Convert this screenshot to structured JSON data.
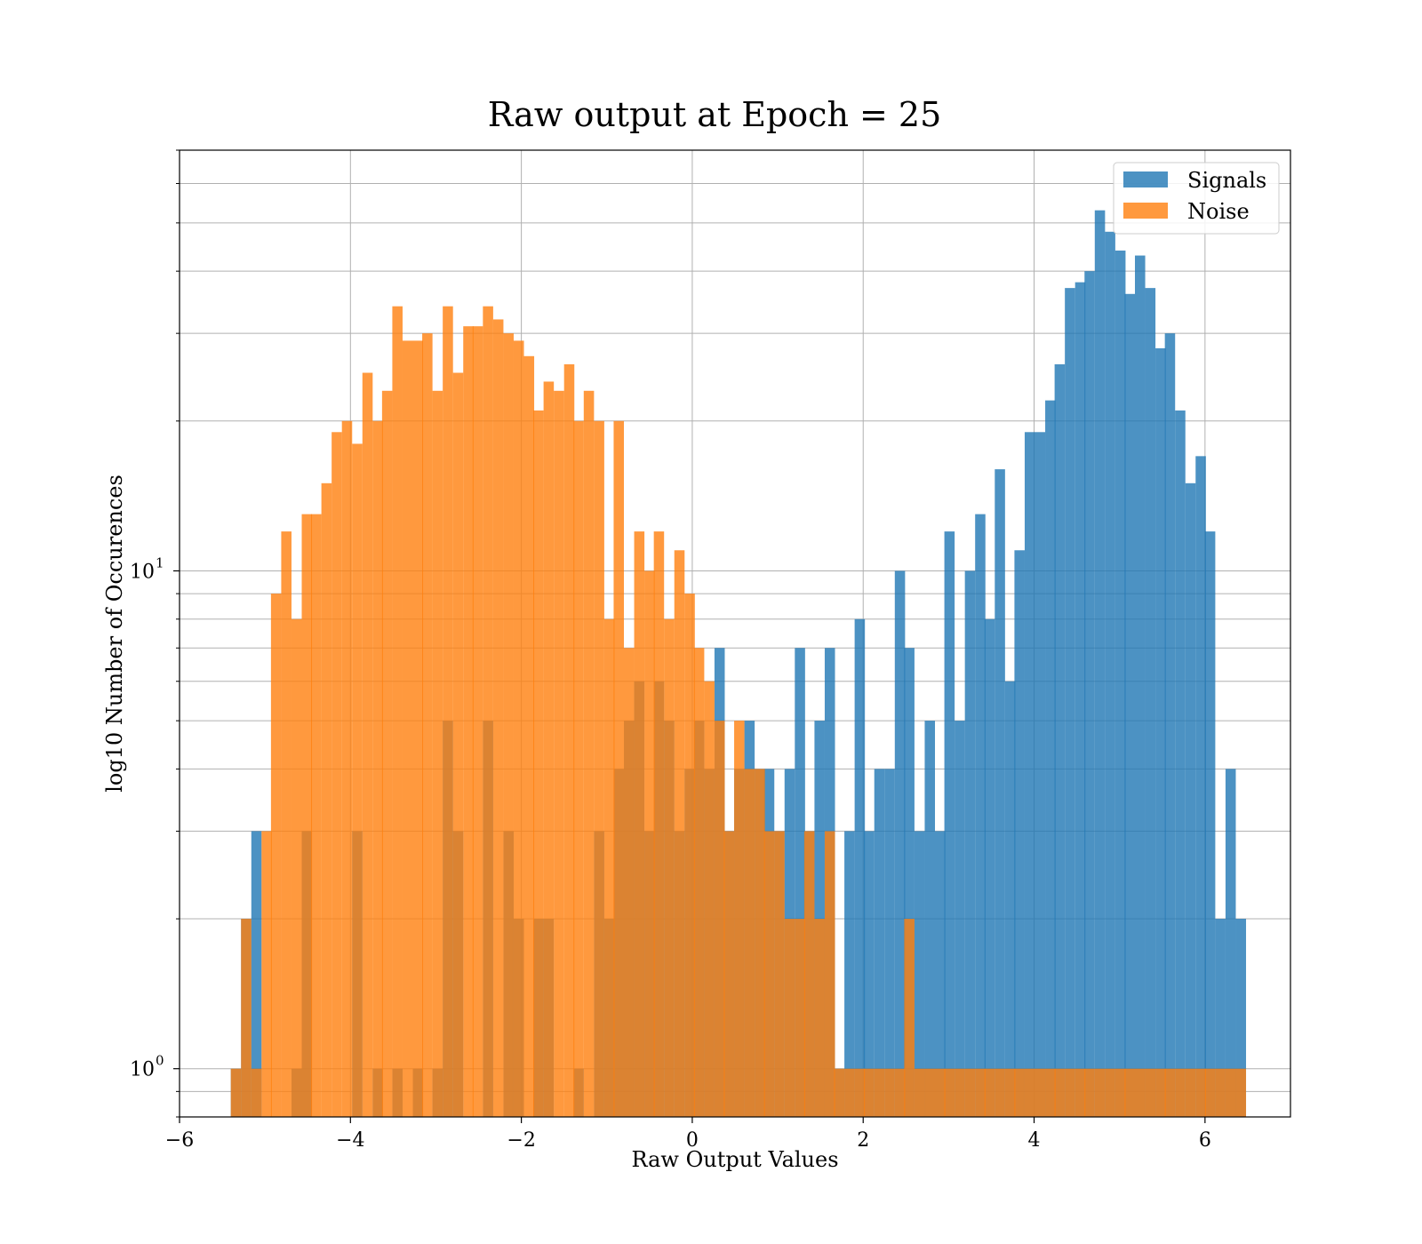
{
  "chart_data": {
    "type": "bar",
    "title": "Raw output at Epoch = 25",
    "xlabel": "Raw Output Values",
    "ylabel": "log10 Number of Occurences",
    "xlim": [
      -6,
      7
    ],
    "ylim": [
      0.8,
      70
    ],
    "yscale": "log",
    "grid": true,
    "legend_position": "top-right",
    "x_ticks": [
      "−6",
      "−4",
      "−2",
      "0",
      "2",
      "4",
      "6"
    ],
    "y_ticks": [
      "10",
      "10"
    ],
    "y_tick_exponents": [
      "0",
      "1"
    ],
    "bin_width": 0.117,
    "series": [
      {
        "name": "Signals",
        "color": "#1f77b4",
        "bins": [
          [
            -5.4,
            1
          ],
          [
            -5.28,
            2
          ],
          [
            -5.16,
            3
          ],
          [
            -4.69,
            1
          ],
          [
            -4.57,
            3
          ],
          [
            -3.98,
            3
          ],
          [
            -3.74,
            1
          ],
          [
            -3.51,
            1
          ],
          [
            -3.27,
            1
          ],
          [
            -3.04,
            1
          ],
          [
            -2.92,
            5
          ],
          [
            -2.8,
            3
          ],
          [
            -2.45,
            5
          ],
          [
            -2.21,
            3
          ],
          [
            -2.09,
            2
          ],
          [
            -1.86,
            2
          ],
          [
            -1.74,
            2
          ],
          [
            -1.39,
            1
          ],
          [
            -1.15,
            3
          ],
          [
            -1.03,
            2
          ],
          [
            -0.92,
            4
          ],
          [
            -0.8,
            5
          ],
          [
            -0.68,
            6
          ],
          [
            -0.56,
            3
          ],
          [
            -0.45,
            6
          ],
          [
            -0.33,
            5
          ],
          [
            -0.21,
            3
          ],
          [
            -0.09,
            4
          ],
          [
            0.02,
            5
          ],
          [
            0.14,
            4
          ],
          [
            0.26,
            7
          ],
          [
            0.37,
            3
          ],
          [
            0.49,
            4
          ],
          [
            0.61,
            5
          ],
          [
            0.73,
            4
          ],
          [
            0.84,
            4
          ],
          [
            0.96,
            3
          ],
          [
            1.08,
            4
          ],
          [
            1.2,
            7
          ],
          [
            1.31,
            3
          ],
          [
            1.43,
            5
          ],
          [
            1.55,
            7
          ],
          [
            1.66,
            1
          ],
          [
            1.78,
            3
          ],
          [
            1.9,
            8
          ],
          [
            2.01,
            3
          ],
          [
            2.13,
            4
          ],
          [
            2.25,
            4
          ],
          [
            2.37,
            10
          ],
          [
            2.48,
            7
          ],
          [
            2.6,
            3
          ],
          [
            2.72,
            5
          ],
          [
            2.84,
            3
          ],
          [
            2.95,
            12
          ],
          [
            3.07,
            5
          ],
          [
            3.19,
            10
          ],
          [
            3.31,
            13
          ],
          [
            3.42,
            8
          ],
          [
            3.54,
            16
          ],
          [
            3.66,
            6
          ],
          [
            3.77,
            11
          ],
          [
            3.89,
            19
          ],
          [
            4.01,
            19
          ],
          [
            4.13,
            22
          ],
          [
            4.24,
            26
          ],
          [
            4.36,
            37
          ],
          [
            4.48,
            38
          ],
          [
            4.59,
            40
          ],
          [
            4.71,
            53
          ],
          [
            4.83,
            48
          ],
          [
            4.95,
            44
          ],
          [
            5.06,
            36
          ],
          [
            5.18,
            43
          ],
          [
            5.3,
            37
          ],
          [
            5.42,
            28
          ],
          [
            5.53,
            30
          ],
          [
            5.65,
            21
          ],
          [
            5.77,
            15
          ],
          [
            5.89,
            17
          ],
          [
            6.0,
            12
          ],
          [
            6.12,
            2
          ],
          [
            6.24,
            4
          ],
          [
            6.36,
            2
          ]
        ]
      },
      {
        "name": "Noise",
        "color": "#ff7f0e",
        "bins": [
          [
            -5.4,
            1
          ],
          [
            -5.28,
            2
          ],
          [
            -5.16,
            1
          ],
          [
            -5.04,
            3
          ],
          [
            -4.93,
            9
          ],
          [
            -4.81,
            12
          ],
          [
            -4.69,
            8
          ],
          [
            -4.57,
            13
          ],
          [
            -4.46,
            13
          ],
          [
            -4.34,
            15
          ],
          [
            -4.22,
            19
          ],
          [
            -4.1,
            20
          ],
          [
            -3.98,
            18
          ],
          [
            -3.86,
            25
          ],
          [
            -3.74,
            20
          ],
          [
            -3.63,
            23
          ],
          [
            -3.51,
            34
          ],
          [
            -3.39,
            29
          ],
          [
            -3.27,
            29
          ],
          [
            -3.16,
            30
          ],
          [
            -3.04,
            23
          ],
          [
            -2.92,
            34
          ],
          [
            -2.8,
            25
          ],
          [
            -2.68,
            31
          ],
          [
            -2.57,
            31
          ],
          [
            -2.45,
            34
          ],
          [
            -2.33,
            32
          ],
          [
            -2.21,
            30
          ],
          [
            -2.09,
            29
          ],
          [
            -1.97,
            27
          ],
          [
            -1.86,
            21
          ],
          [
            -1.74,
            24
          ],
          [
            -1.62,
            23
          ],
          [
            -1.5,
            26
          ],
          [
            -1.39,
            20
          ],
          [
            -1.27,
            23
          ],
          [
            -1.15,
            20
          ],
          [
            -1.03,
            8
          ],
          [
            -0.92,
            20
          ],
          [
            -0.8,
            7
          ],
          [
            -0.68,
            12
          ],
          [
            -0.56,
            10
          ],
          [
            -0.45,
            12
          ],
          [
            -0.33,
            8
          ],
          [
            -0.21,
            11
          ],
          [
            -0.09,
            9
          ],
          [
            0.02,
            7
          ],
          [
            0.14,
            6
          ],
          [
            0.26,
            5
          ],
          [
            0.37,
            3
          ],
          [
            0.49,
            5
          ],
          [
            0.61,
            4
          ],
          [
            0.73,
            4
          ],
          [
            0.84,
            3
          ],
          [
            0.96,
            3
          ],
          [
            1.08,
            2
          ],
          [
            1.2,
            2
          ],
          [
            1.31,
            3
          ],
          [
            1.43,
            2
          ],
          [
            1.55,
            3
          ],
          [
            1.66,
            1
          ],
          [
            1.78,
            1
          ],
          [
            1.9,
            1
          ],
          [
            2.01,
            1
          ],
          [
            2.13,
            1
          ],
          [
            2.25,
            1
          ],
          [
            2.37,
            1
          ],
          [
            2.48,
            2
          ],
          [
            2.6,
            1
          ],
          [
            2.72,
            1
          ],
          [
            2.84,
            1
          ],
          [
            2.95,
            1
          ],
          [
            3.07,
            1
          ],
          [
            3.19,
            1
          ],
          [
            3.31,
            1
          ],
          [
            3.42,
            1
          ],
          [
            3.54,
            1
          ],
          [
            3.66,
            1
          ],
          [
            3.77,
            1
          ],
          [
            3.89,
            1
          ],
          [
            4.01,
            1
          ],
          [
            4.13,
            1
          ],
          [
            4.24,
            1
          ],
          [
            4.36,
            1
          ],
          [
            4.48,
            1
          ],
          [
            4.59,
            1
          ],
          [
            4.71,
            1
          ],
          [
            4.83,
            1
          ],
          [
            4.95,
            1
          ],
          [
            5.06,
            1
          ],
          [
            5.18,
            1
          ],
          [
            5.3,
            1
          ],
          [
            5.42,
            1
          ],
          [
            5.53,
            1
          ],
          [
            5.65,
            1
          ],
          [
            5.77,
            1
          ],
          [
            5.89,
            1
          ],
          [
            6.0,
            1
          ],
          [
            6.12,
            1
          ],
          [
            6.24,
            1
          ],
          [
            6.36,
            1
          ]
        ]
      }
    ]
  }
}
